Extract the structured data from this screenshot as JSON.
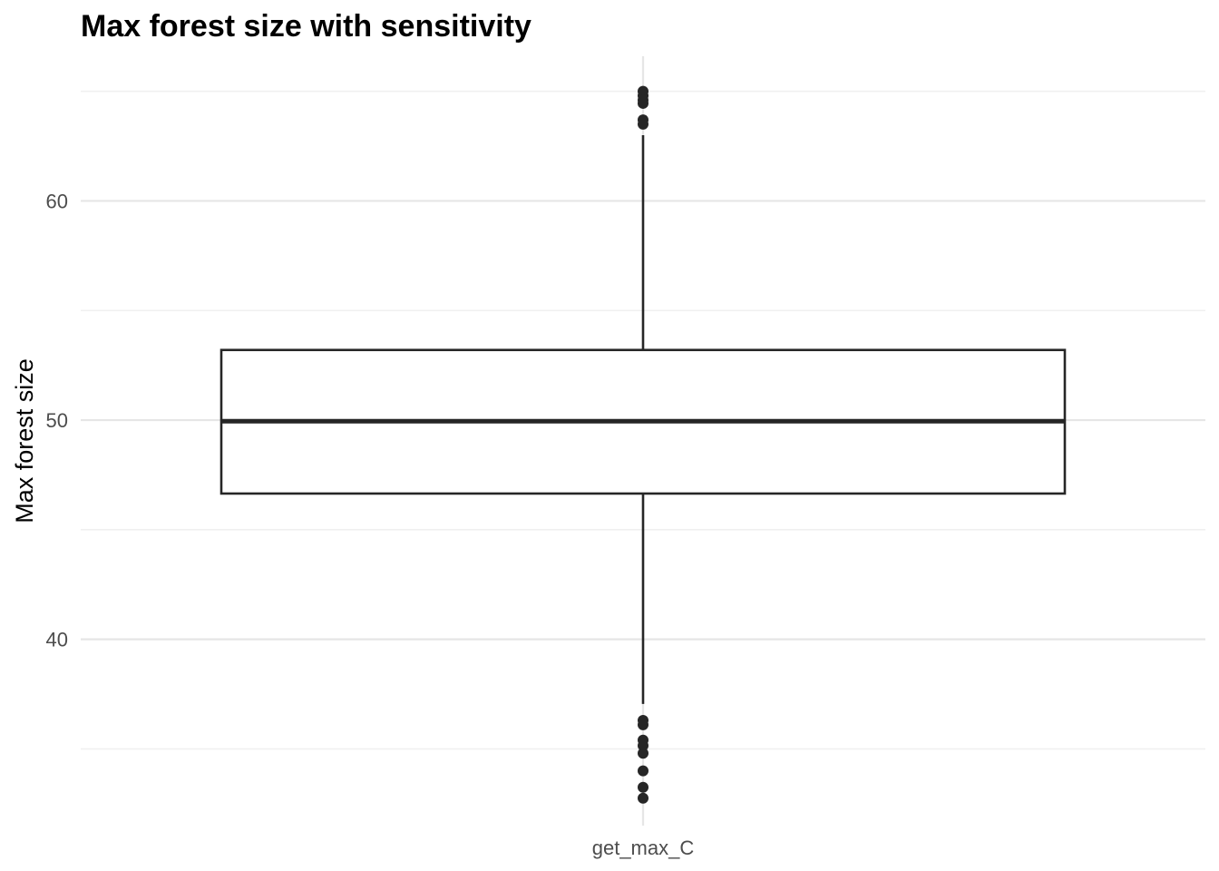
{
  "chart_data": {
    "type": "boxplot",
    "title": "Max forest size with sensitivity",
    "xlabel": "",
    "ylabel": "Max forest size",
    "categories": [
      "get_max_C"
    ],
    "ylim": [
      31.5,
      66.6
    ],
    "yticks": [
      40,
      50,
      60
    ],
    "ytick_labels": [
      "40",
      "50",
      "60"
    ],
    "grid": true,
    "boxes": [
      {
        "category": "get_max_C",
        "q1": 46.65,
        "median": 49.95,
        "q3": 53.2,
        "whisker_low": 37.05,
        "whisker_high": 63.0,
        "outliers": [
          65.0,
          64.8,
          64.6,
          64.45,
          63.7,
          63.5,
          36.3,
          36.1,
          35.4,
          35.15,
          34.8,
          34.0,
          33.25,
          32.75
        ]
      }
    ]
  },
  "colors": {
    "background": "#ffffff",
    "grid_major": "#e6e6e6",
    "grid_minor": "#f0f0f0",
    "box_stroke": "#262626",
    "outlier_fill": "#262626",
    "tick_label": "#4d4d4d",
    "title": "#000000"
  }
}
